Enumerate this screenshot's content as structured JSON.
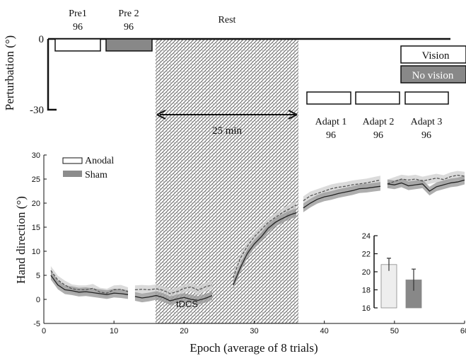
{
  "protocol": {
    "ylabel": "Perturbation (°)",
    "yticks": [
      {
        "value": 0,
        "label": "0"
      },
      {
        "value": -30,
        "label": "-30"
      }
    ],
    "blocks": [
      {
        "name": "Pre1",
        "trials": "96",
        "fill": "#ffffff"
      },
      {
        "name": "Pre 2",
        "trials": "96",
        "fill": "#888888"
      },
      {
        "name": "Adapt 1",
        "trials": "96",
        "fill": "#ffffff"
      },
      {
        "name": "Adapt 2",
        "trials": "96",
        "fill": "#ffffff"
      },
      {
        "name": "Adapt 3",
        "trials": "96",
        "fill": "#ffffff"
      }
    ],
    "rest_label": "Rest",
    "rest_duration": "25 min",
    "stim_label": "tDCS",
    "legend": [
      {
        "label": "Vision",
        "fill": "#ffffff"
      },
      {
        "label": "No vision",
        "fill": "#888888"
      }
    ]
  },
  "chart_data": [
    {
      "type": "line",
      "xlabel": "Epoch (average of 8 trials)",
      "ylabel": "Hand direction (°)",
      "xlim": [
        0,
        60
      ],
      "ylim": [
        -5,
        30
      ],
      "xticks": [
        0,
        10,
        20,
        30,
        40,
        50,
        60
      ],
      "yticks": [
        -5,
        0,
        5,
        10,
        15,
        20,
        25,
        30
      ],
      "legend_position": "top-left",
      "series": [
        {
          "name": "Anodal",
          "color": "#555555",
          "band": "#cfcfcf",
          "style": "dashed",
          "segments": [
            {
              "x": [
                1,
                2,
                3,
                4,
                5,
                6,
                7,
                8,
                9,
                10,
                11,
                12
              ],
              "y": [
                6.0,
                4.0,
                3.0,
                2.2,
                2.0,
                2.0,
                2.3,
                1.5,
                1.3,
                2.0,
                2.1,
                1.6
              ]
            },
            {
              "x": [
                13,
                14,
                15,
                16,
                17,
                18,
                19,
                20,
                21,
                22,
                23,
                24
              ],
              "y": [
                2.0,
                2.1,
                2.0,
                2.2,
                1.9,
                1.2,
                1.6,
                2.3,
                2.6,
                1.9,
                2.6,
                3.0
              ]
            },
            {
              "x": [
                27,
                28,
                29,
                30,
                31,
                32,
                33,
                34,
                35,
                36
              ],
              "y": [
                4.5,
                8.5,
                11.0,
                13.0,
                14.5,
                16.0,
                17.0,
                18.0,
                18.8,
                19.6
              ]
            },
            {
              "x": [
                37,
                38,
                39,
                40,
                41,
                42,
                43,
                44,
                45,
                46,
                47,
                48
              ],
              "y": [
                20.5,
                21.5,
                22.0,
                22.5,
                23.0,
                23.3,
                23.5,
                23.8,
                24.0,
                24.2,
                24.5,
                24.8
              ]
            },
            {
              "x": [
                49,
                50,
                51,
                52,
                53,
                54,
                55,
                56,
                57,
                58,
                59,
                60
              ],
              "y": [
                24.0,
                24.5,
                25.0,
                24.8,
                25.0,
                24.6,
                24.9,
                25.2,
                24.9,
                25.5,
                25.8,
                25.6
              ]
            }
          ]
        },
        {
          "name": "Sham",
          "color": "#222222",
          "band": "#9a9a9a",
          "style": "solid",
          "segments": [
            {
              "x": [
                1,
                2,
                3,
                4,
                5,
                6,
                7,
                8,
                9,
                10,
                11,
                12
              ],
              "y": [
                5.0,
                3.0,
                2.0,
                1.8,
                1.5,
                1.6,
                1.4,
                1.2,
                1.0,
                1.3,
                1.2,
                1.0
              ]
            },
            {
              "x": [
                13,
                14,
                15,
                16,
                17,
                18,
                19,
                20,
                21,
                22,
                23,
                24
              ],
              "y": [
                0.6,
                0.3,
                0.5,
                0.8,
                0.4,
                -0.3,
                0.1,
                0.4,
                0.0,
                -0.2,
                0.2,
                0.8
              ]
            },
            {
              "x": [
                27,
                28,
                29,
                30,
                31,
                32,
                33,
                34,
                35,
                36
              ],
              "y": [
                3.0,
                6.5,
                9.5,
                11.5,
                13.0,
                14.8,
                16.0,
                16.8,
                17.5,
                18.0
              ]
            },
            {
              "x": [
                37,
                38,
                39,
                40,
                41,
                42,
                43,
                44,
                45,
                46,
                47,
                48
              ],
              "y": [
                19.0,
                20.0,
                20.8,
                21.3,
                21.6,
                22.0,
                22.3,
                22.6,
                23.0,
                23.1,
                23.3,
                23.5
              ]
            },
            {
              "x": [
                49,
                50,
                51,
                52,
                53,
                54,
                55,
                56,
                57,
                58,
                59,
                60
              ],
              "y": [
                24.0,
                23.8,
                24.2,
                23.6,
                23.8,
                24.0,
                22.5,
                23.4,
                23.8,
                24.2,
                24.4,
                24.8
              ]
            }
          ]
        }
      ]
    },
    {
      "type": "bar",
      "categories": [
        "Anodal",
        "Sham"
      ],
      "values": [
        20.8,
        19.1
      ],
      "errors": [
        0.7,
        1.2
      ],
      "colors": [
        "#eeeeee",
        "#888888"
      ],
      "ylim": [
        16,
        24
      ],
      "yticks": [
        16,
        18,
        20,
        22,
        24
      ]
    }
  ]
}
